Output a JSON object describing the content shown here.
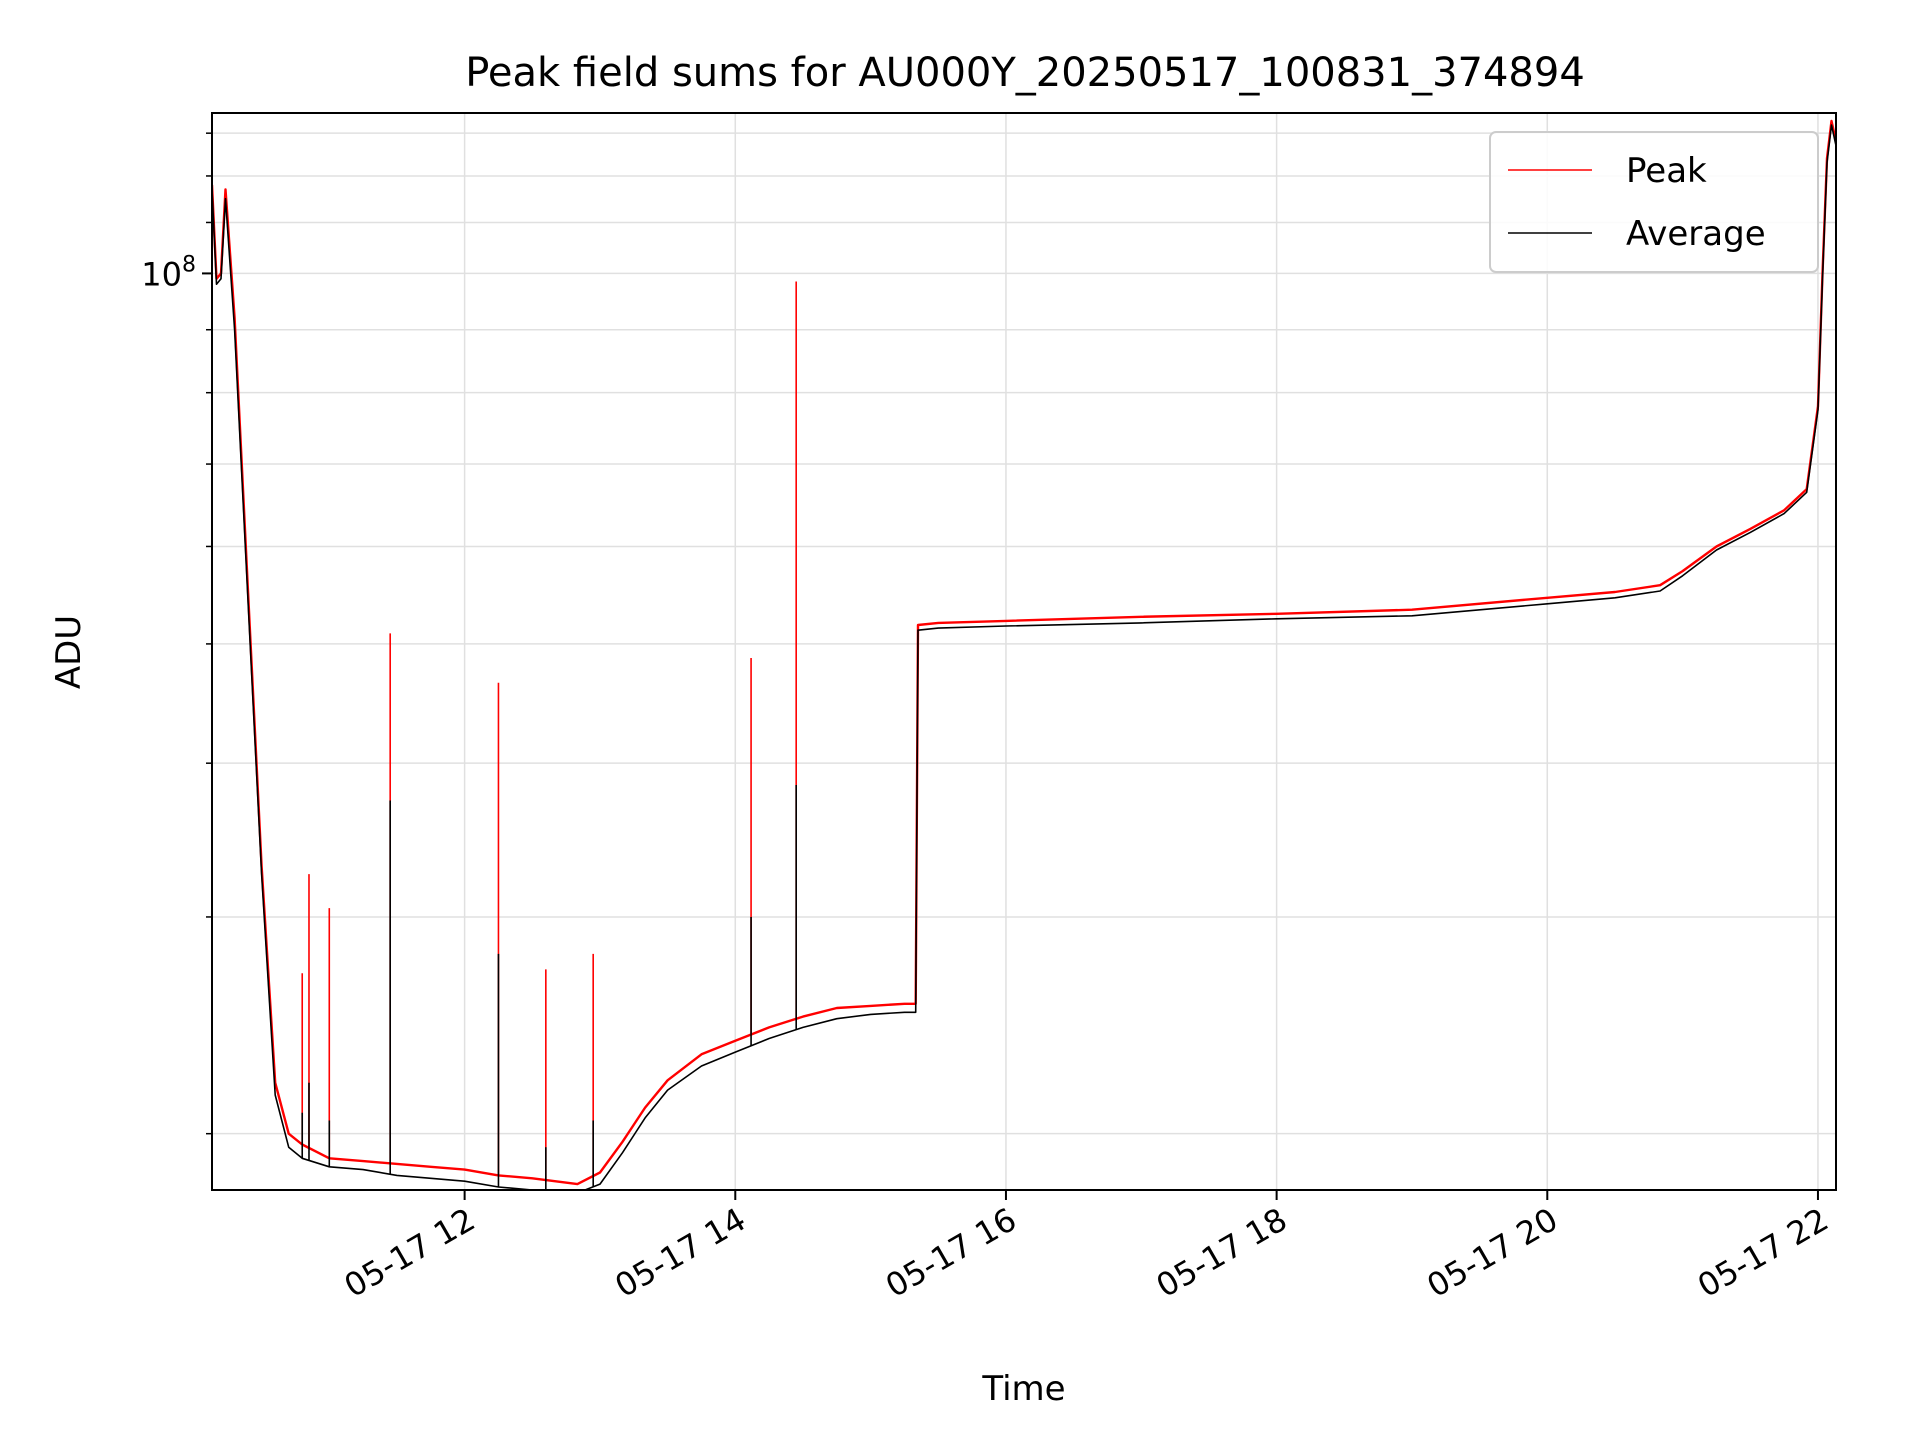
{
  "chart_data": {
    "type": "line",
    "title": "Peak field sums for AU000Y_20250517_100831_374894",
    "xlabel": "Time",
    "ylabel": "ADU",
    "y_scale": "log",
    "xlim": [
      "05-17 10:08",
      "05-17 22:08"
    ],
    "ylim": [
      18000000,
      135000000
    ],
    "x_ticks": [
      "05-17 12",
      "05-17 14",
      "05-17 16",
      "05-17 18",
      "05-17 20",
      "05-17 22"
    ],
    "y_major_tick_label": "10^8",
    "grid": true,
    "legend_position": "top-right",
    "colors": {
      "peak": "#ff0000",
      "average": "#000000",
      "grid": "#e0e0e0"
    },
    "series": [
      {
        "name": "Peak",
        "x": [
          "05-17 10:08",
          "05-17 10:10",
          "05-17 10:12",
          "05-17 10:14",
          "05-17 10:18",
          "05-17 10:24",
          "05-17 10:30",
          "05-17 10:36",
          "05-17 10:42",
          "05-17 10:48",
          "05-17 11:00",
          "05-17 11:15",
          "05-17 11:30",
          "05-17 11:45",
          "05-17 12:00",
          "05-17 12:15",
          "05-17 12:30",
          "05-17 12:40",
          "05-17 12:50",
          "05-17 13:00",
          "05-17 13:10",
          "05-17 13:20",
          "05-17 13:30",
          "05-17 13:45",
          "05-17 14:00",
          "05-17 14:15",
          "05-17 14:30",
          "05-17 14:45",
          "05-17 15:00",
          "05-17 15:15",
          "05-17 15:20",
          "05-17 15:21",
          "05-17 15:30",
          "05-17 16:00",
          "05-17 17:00",
          "05-17 18:00",
          "05-17 19:00",
          "05-17 20:00",
          "05-17 20:30",
          "05-17 20:50",
          "05-17 21:00",
          "05-17 21:15",
          "05-17 21:30",
          "05-17 21:45",
          "05-17 21:55",
          "05-17 22:00",
          "05-17 22:02",
          "05-17 22:04",
          "05-17 22:06",
          "05-17 22:08"
        ],
        "y": [
          118000000,
          99000000,
          100000000,
          117000000,
          92000000,
          55000000,
          33000000,
          22000000,
          20000000,
          19600000,
          19100000,
          19000000,
          18900000,
          18800000,
          18700000,
          18500000,
          18400000,
          18300000,
          18200000,
          18600000,
          19700000,
          21000000,
          22100000,
          23200000,
          23800000,
          24400000,
          24900000,
          25300000,
          25400000,
          25500000,
          25500000,
          51800000,
          52000000,
          52200000,
          52600000,
          52900000,
          53300000,
          54500000,
          55100000,
          55800000,
          57300000,
          60000000,
          62000000,
          64200000,
          66800000,
          78000000,
          100000000,
          124000000,
          133000000,
          128000000
        ],
        "spikes": [
          {
            "x": "05-17 10:48",
            "y": 27000000
          },
          {
            "x": "05-17 10:51",
            "y": 32500000
          },
          {
            "x": "05-17 11:00",
            "y": 30500000
          },
          {
            "x": "05-17 11:27",
            "y": 51000000
          },
          {
            "x": "05-17 12:15",
            "y": 46500000
          },
          {
            "x": "05-17 12:36",
            "y": 27200000
          },
          {
            "x": "05-17 12:57",
            "y": 28000000
          },
          {
            "x": "05-17 14:07",
            "y": 48700000
          },
          {
            "x": "05-17 14:27",
            "y": 98500000
          }
        ]
      },
      {
        "name": "Average",
        "x": [
          "05-17 10:08",
          "05-17 10:10",
          "05-17 10:12",
          "05-17 10:14",
          "05-17 10:18",
          "05-17 10:24",
          "05-17 10:30",
          "05-17 10:36",
          "05-17 10:42",
          "05-17 10:48",
          "05-17 11:00",
          "05-17 11:15",
          "05-17 11:30",
          "05-17 11:45",
          "05-17 12:00",
          "05-17 12:15",
          "05-17 12:30",
          "05-17 12:40",
          "05-17 12:50",
          "05-17 13:00",
          "05-17 13:10",
          "05-17 13:20",
          "05-17 13:30",
          "05-17 13:45",
          "05-17 14:00",
          "05-17 14:15",
          "05-17 14:30",
          "05-17 14:45",
          "05-17 15:00",
          "05-17 15:15",
          "05-17 15:20",
          "05-17 15:21",
          "05-17 15:30",
          "05-17 16:00",
          "05-17 17:00",
          "05-17 18:00",
          "05-17 19:00",
          "05-17 20:00",
          "05-17 20:30",
          "05-17 20:50",
          "05-17 21:00",
          "05-17 21:15",
          "05-17 21:30",
          "05-17 21:45",
          "05-17 21:55",
          "05-17 22:00",
          "05-17 22:02",
          "05-17 22:04",
          "05-17 22:06",
          "05-17 22:08"
        ],
        "y": [
          117000000,
          98000000,
          99000000,
          115000000,
          90000000,
          54000000,
          32500000,
          21500000,
          19500000,
          19100000,
          18800000,
          18700000,
          18500000,
          18400000,
          18300000,
          18100000,
          18000000,
          17900000,
          17900000,
          18200000,
          19300000,
          20600000,
          21700000,
          22700000,
          23300000,
          23900000,
          24400000,
          24800000,
          25000000,
          25100000,
          25100000,
          51300000,
          51500000,
          51700000,
          52000000,
          52400000,
          52700000,
          53900000,
          54500000,
          55200000,
          56800000,
          59600000,
          61600000,
          63800000,
          66400000,
          77500000,
          99000000,
          123000000,
          132000000,
          127000000
        ],
        "spikes": [
          {
            "x": "05-17 10:48",
            "y": 20800000
          },
          {
            "x": "05-17 10:51",
            "y": 22000000
          },
          {
            "x": "05-17 11:00",
            "y": 20500000
          },
          {
            "x": "05-17 11:27",
            "y": 37300000
          },
          {
            "x": "05-17 12:15",
            "y": 28000000
          },
          {
            "x": "05-17 12:36",
            "y": 19500000
          },
          {
            "x": "05-17 12:57",
            "y": 20500000
          },
          {
            "x": "05-17 14:07",
            "y": 30000000
          },
          {
            "x": "05-17 14:27",
            "y": 38400000
          }
        ]
      }
    ]
  }
}
